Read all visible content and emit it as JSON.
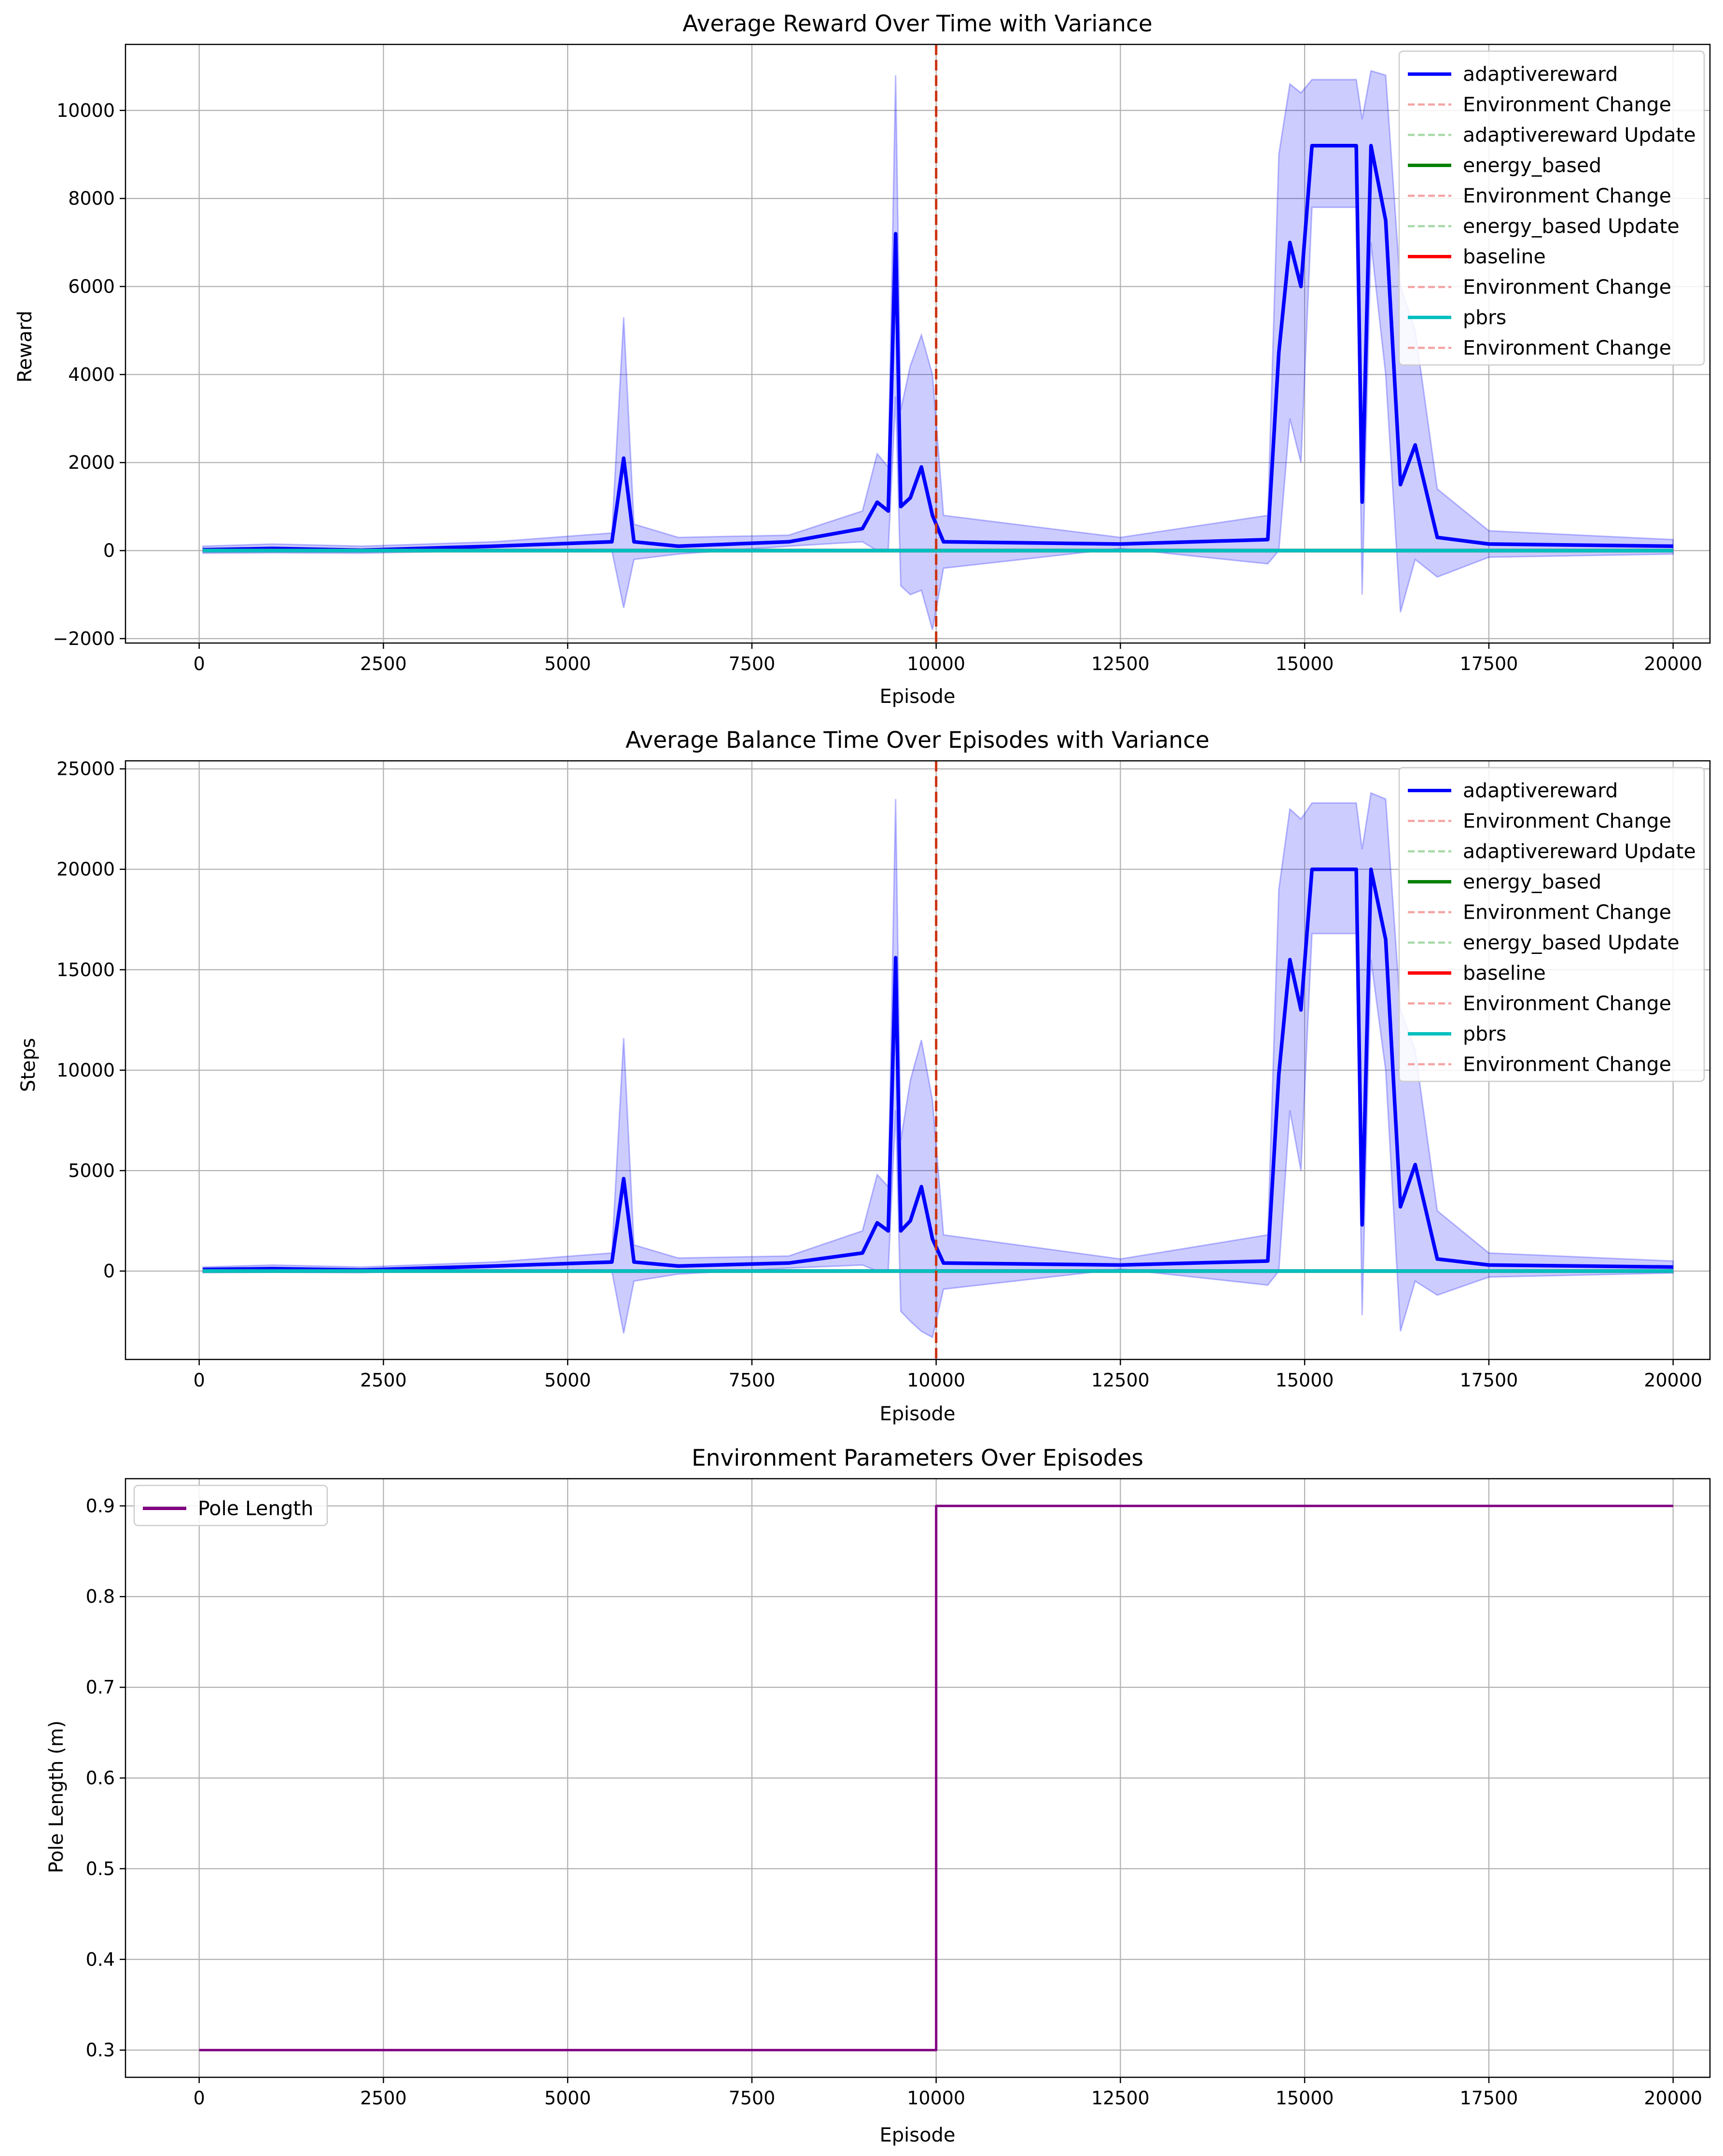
{
  "chart_data": [
    {
      "type": "line",
      "title": "Average Reward Over Time with Variance",
      "xlabel": "Episode",
      "ylabel": "Reward",
      "xlim": [
        -1000,
        20500
      ],
      "ylim": [
        -2100,
        11500
      ],
      "xticks": [
        0,
        2500,
        5000,
        7500,
        10000,
        12500,
        15000,
        17500,
        20000
      ],
      "yticks": [
        -2000,
        0,
        2000,
        4000,
        6000,
        8000,
        10000
      ],
      "grid": true,
      "legend_position": "top-right",
      "vlines": [
        {
          "x": 10000,
          "color": "#cc3311",
          "style": "dashed"
        }
      ],
      "legend": [
        {
          "label": "adaptivereward",
          "color": "#0000ff",
          "style": "solid"
        },
        {
          "label": "Environment Change",
          "color": "#f4a3a3",
          "style": "dashed"
        },
        {
          "label": "adaptivereward Update",
          "color": "#a6d9a6",
          "style": "dashed"
        },
        {
          "label": "energy_based",
          "color": "#008000",
          "style": "solid"
        },
        {
          "label": "Environment Change",
          "color": "#f4a3a3",
          "style": "dashed"
        },
        {
          "label": "energy_based Update",
          "color": "#a6d9a6",
          "style": "dashed"
        },
        {
          "label": "baseline",
          "color": "#ff0000",
          "style": "solid"
        },
        {
          "label": "Environment Change",
          "color": "#f4a3a3",
          "style": "dashed"
        },
        {
          "label": "pbrs",
          "color": "#00bfbf",
          "style": "solid"
        },
        {
          "label": "Environment Change",
          "color": "#f4a3a3",
          "style": "dashed"
        }
      ],
      "series": [
        {
          "name": "adaptivereward",
          "color": "#0000ff",
          "x": [
            50,
            1000,
            2200,
            4000,
            5600,
            5760,
            5900,
            6500,
            8000,
            9000,
            9200,
            9350,
            9450,
            9520,
            9650,
            9800,
            9950,
            10100,
            12500,
            14500,
            14650,
            14800,
            14950,
            15100,
            15700,
            15780,
            15900,
            16100,
            16300,
            16500,
            16800,
            17500,
            20000
          ],
          "y": [
            20,
            50,
            10,
            100,
            200,
            2100,
            200,
            100,
            200,
            500,
            1100,
            900,
            7200,
            1000,
            1200,
            1900,
            800,
            200,
            150,
            250,
            4500,
            7000,
            6000,
            9200,
            9200,
            1100,
            9200,
            7500,
            1500,
            2400,
            300,
            150,
            100
          ],
          "band_upper": [
            100,
            150,
            100,
            200,
            400,
            5300,
            600,
            300,
            350,
            900,
            2200,
            1900,
            10800,
            3200,
            4200,
            4900,
            4000,
            800,
            300,
            800,
            9000,
            10600,
            10400,
            10700,
            10700,
            9800,
            10900,
            10800,
            6000,
            5000,
            1400,
            450,
            250
          ],
          "band_lower": [
            -60,
            -50,
            -60,
            0,
            0,
            -1300,
            -200,
            -80,
            100,
            200,
            0,
            0,
            3500,
            -800,
            -1000,
            -900,
            -1800,
            -400,
            50,
            -300,
            0,
            3000,
            2000,
            7800,
            7800,
            -1000,
            7000,
            4000,
            -1400,
            -200,
            -600,
            -150,
            -80
          ]
        },
        {
          "name": "energy_based",
          "color": "#008000",
          "x": [
            50,
            20000
          ],
          "y": [
            0,
            0
          ]
        },
        {
          "name": "baseline",
          "color": "#ff0000",
          "x": [
            50,
            20000
          ],
          "y": [
            0,
            0
          ]
        },
        {
          "name": "pbrs",
          "color": "#00bfbf",
          "x": [
            50,
            20000
          ],
          "y": [
            0,
            0
          ]
        }
      ]
    },
    {
      "type": "line",
      "title": "Average Balance Time Over Episodes with Variance",
      "xlabel": "Episode",
      "ylabel": "Steps",
      "xlim": [
        -1000,
        20500
      ],
      "ylim": [
        -4400,
        25400
      ],
      "xticks": [
        0,
        2500,
        5000,
        7500,
        10000,
        12500,
        15000,
        17500,
        20000
      ],
      "yticks": [
        0,
        5000,
        10000,
        15000,
        20000,
        25000
      ],
      "grid": true,
      "legend_position": "top-right",
      "vlines": [
        {
          "x": 10000,
          "color": "#cc3311",
          "style": "dashed"
        }
      ],
      "legend": [
        {
          "label": "adaptivereward",
          "color": "#0000ff",
          "style": "solid"
        },
        {
          "label": "Environment Change",
          "color": "#f4a3a3",
          "style": "dashed"
        },
        {
          "label": "adaptivereward Update",
          "color": "#a6d9a6",
          "style": "dashed"
        },
        {
          "label": "energy_based",
          "color": "#008000",
          "style": "solid"
        },
        {
          "label": "Environment Change",
          "color": "#f4a3a3",
          "style": "dashed"
        },
        {
          "label": "energy_based Update",
          "color": "#a6d9a6",
          "style": "dashed"
        },
        {
          "label": "baseline",
          "color": "#ff0000",
          "style": "solid"
        },
        {
          "label": "Environment Change",
          "color": "#f4a3a3",
          "style": "dashed"
        },
        {
          "label": "pbrs",
          "color": "#00bfbf",
          "style": "solid"
        },
        {
          "label": "Environment Change",
          "color": "#f4a3a3",
          "style": "dashed"
        }
      ],
      "series": [
        {
          "name": "adaptivereward",
          "color": "#0000ff",
          "x": [
            50,
            1000,
            2200,
            4000,
            5600,
            5760,
            5900,
            6500,
            8000,
            9000,
            9200,
            9350,
            9450,
            9520,
            9650,
            9800,
            9950,
            10100,
            12500,
            14500,
            14650,
            14800,
            14950,
            15100,
            15700,
            15780,
            15900,
            16100,
            16300,
            16500,
            16800,
            17500,
            20000
          ],
          "y": [
            80,
            120,
            50,
            250,
            450,
            4600,
            450,
            250,
            400,
            900,
            2400,
            2000,
            15600,
            2000,
            2500,
            4200,
            1600,
            400,
            300,
            500,
            9800,
            15500,
            13000,
            20000,
            20000,
            2300,
            20000,
            16500,
            3200,
            5300,
            600,
            300,
            200
          ],
          "band_upper": [
            200,
            300,
            200,
            450,
            900,
            11600,
            1300,
            650,
            750,
            2000,
            4800,
            4200,
            23500,
            6500,
            9500,
            11500,
            8500,
            1800,
            600,
            1800,
            19000,
            23000,
            22500,
            23300,
            23300,
            21000,
            23800,
            23500,
            13000,
            11000,
            3000,
            900,
            500
          ],
          "band_lower": [
            -80,
            -60,
            -80,
            50,
            0,
            -3100,
            -500,
            -150,
            150,
            300,
            0,
            0,
            8000,
            -2000,
            -2500,
            -3000,
            -3300,
            -900,
            100,
            -700,
            0,
            8000,
            5000,
            16800,
            16800,
            -2200,
            15500,
            10000,
            -3000,
            -500,
            -1200,
            -300,
            -100
          ]
        },
        {
          "name": "energy_based",
          "color": "#008000",
          "x": [
            50,
            20000
          ],
          "y": [
            0,
            0
          ]
        },
        {
          "name": "baseline",
          "color": "#ff0000",
          "x": [
            50,
            20000
          ],
          "y": [
            0,
            0
          ]
        },
        {
          "name": "pbrs",
          "color": "#00bfbf",
          "x": [
            50,
            20000
          ],
          "y": [
            0,
            0
          ]
        }
      ]
    },
    {
      "type": "line",
      "title": "Environment Parameters Over Episodes",
      "xlabel": "Episode",
      "ylabel": "Pole Length (m)",
      "xlim": [
        -1000,
        20500
      ],
      "ylim": [
        0.27,
        0.93
      ],
      "xticks": [
        0,
        2500,
        5000,
        7500,
        10000,
        12500,
        15000,
        17500,
        20000
      ],
      "yticks": [
        0.3,
        0.4,
        0.5,
        0.6,
        0.7,
        0.8,
        0.9
      ],
      "yticks_text": [
        "0.3",
        "0.4",
        "0.5",
        "0.6",
        "0.7",
        "0.8",
        "0.9"
      ],
      "grid": true,
      "legend_position": "top-left",
      "vlines": [],
      "legend": [
        {
          "label": "Pole Length",
          "color": "#800080",
          "style": "solid"
        }
      ],
      "series": [
        {
          "name": "Pole Length",
          "color": "#800080",
          "x": [
            0,
            10000,
            10000,
            20000
          ],
          "y": [
            0.3,
            0.3,
            0.9,
            0.9
          ]
        }
      ]
    }
  ]
}
